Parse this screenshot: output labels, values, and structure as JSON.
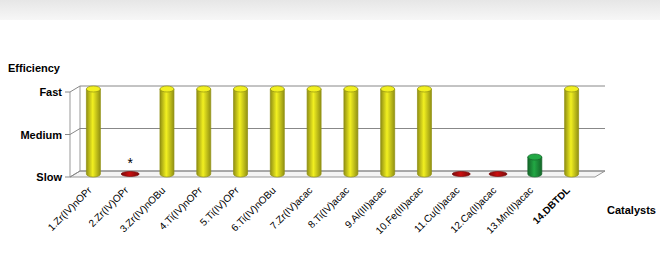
{
  "chart_data": {
    "type": "bar",
    "y_label": "Efficiency",
    "x_label": "Catalysts",
    "categories": [
      "1.Zr(IV)nOPr",
      "2.Zr(IV)OPr",
      "3.Zr(IV)nOBu",
      "4.Ti(IV)nOPr",
      "5.Ti(IV)OPr",
      "6.Ti(IV)nOBu",
      "7.Zr(IV)acac",
      "8.Ti(IV)acac",
      "9.Al(III)acac",
      "10.Fe(III)acac",
      "11.Cu(II)acac",
      "12.Ca(II)acac",
      "13.Mn(II)acac",
      "14.DBTDL"
    ],
    "values": [
      3,
      1,
      3,
      3,
      3,
      3,
      3,
      3,
      3,
      3,
      1,
      1,
      1.4,
      3
    ],
    "colors": [
      "#f2f020",
      "#cc1010",
      "#f2f020",
      "#f2f020",
      "#f2f020",
      "#f2f020",
      "#f2f020",
      "#f2f020",
      "#f2f020",
      "#f2f020",
      "#cc1010",
      "#cc1010",
      "#22a844",
      "#f2f020"
    ],
    "ylim": [
      1,
      3
    ],
    "yticks": [
      {
        "value": 1,
        "label": "Slow"
      },
      {
        "value": 2,
        "label": "Medium"
      },
      {
        "value": 3,
        "label": "Fast"
      }
    ],
    "grid": true,
    "annotations": [
      {
        "text": "*",
        "category": "2.Zr(IV)OPr"
      }
    ]
  }
}
